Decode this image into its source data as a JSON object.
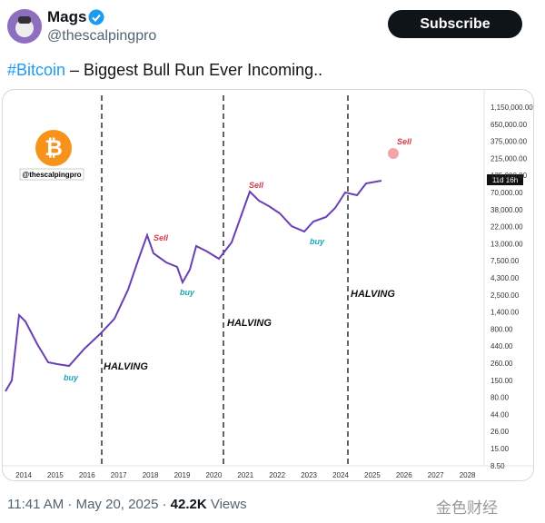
{
  "author": {
    "name": "Mags",
    "handle": "@thescalpingpro"
  },
  "subscribe_button": "Subscribe",
  "tweet": {
    "hashtag": "#Bitcoin",
    "text": "– Biggest Bull Run Ever Incoming.."
  },
  "image": {
    "watermark_handle": "@thescalpingpro",
    "price_axis": [
      "1,150,000.00",
      "650,000.00",
      "375,000.00",
      "215,000.00",
      "125,000.00",
      "70,000.00",
      "38,000.00",
      "22,000.00",
      "13,000.00",
      "7,500.00",
      "4,300.00",
      "2,500.00",
      "1,400.00",
      "800.00",
      "440.00",
      "260.00",
      "150.00",
      "80.00",
      "44.00",
      "26.00",
      "15.00",
      "8.50"
    ],
    "countdown": "11d 16h",
    "years": [
      2014,
      2015,
      2016,
      2017,
      2018,
      2019,
      2020,
      2021,
      2022,
      2023,
      2024,
      2025,
      2026,
      2027,
      2028
    ],
    "sell_labels": [
      "Sell",
      "Sell",
      "Sell"
    ],
    "buy_labels": [
      "buy",
      "buy",
      "buy"
    ],
    "halving_labels": [
      "HALVING",
      "HALVING",
      "HALVING"
    ]
  },
  "footer": {
    "timestamp": "11:41 AM · May 20, 2025 ·",
    "views_count": "42.2K",
    "views_label": "Views"
  },
  "watermark": "金色财经"
}
